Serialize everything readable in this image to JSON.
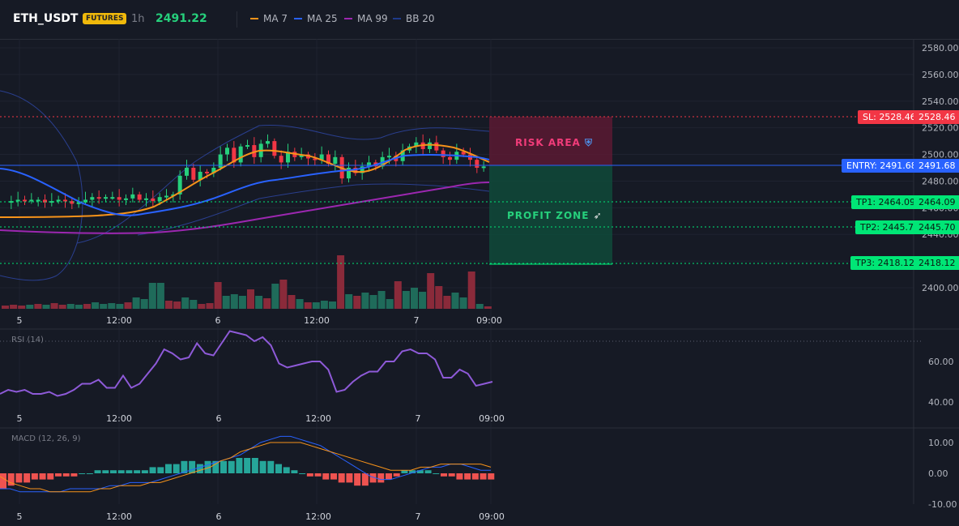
{
  "header": {
    "symbol": "ETH_USDT",
    "badge": "FUTURES",
    "timeframe": "1h",
    "last_price": "2491.22",
    "indicators": [
      {
        "label": "MA 7",
        "color": "#f7931a"
      },
      {
        "label": "MA 25",
        "color": "#2962ff"
      },
      {
        "label": "MA 99",
        "color": "#9c27b0"
      },
      {
        "label": "BB 20",
        "color": "#1e3a8a"
      }
    ]
  },
  "main_axis": {
    "ticks": [
      "2580.00",
      "2560.00",
      "2540.00",
      "2520.00",
      "2500.00",
      "2480.00",
      "2460.00",
      "2440.00",
      "2420.00",
      "2400.00"
    ],
    "values": [
      2580,
      2560,
      2540,
      2520,
      2500,
      2480,
      2460,
      2440,
      2420,
      2400
    ]
  },
  "time_labels": [
    "5",
    "12:00",
    "6",
    "12:00",
    "7",
    "09:00"
  ],
  "levels": {
    "sl": {
      "label": "SL: 2528.46",
      "axis": "2528.46",
      "value": 2528.46,
      "color": "#f23645"
    },
    "entry": {
      "label": "ENTRY: 2491.68",
      "axis": "2491.68",
      "value": 2491.68,
      "color": "#2962ff"
    },
    "tp1": {
      "label": "TP1: 2464.09",
      "axis": "2464.09",
      "value": 2464.09,
      "color": "#00e676"
    },
    "tp2": {
      "label": "TP2: 2445.7",
      "axis": "2445.70",
      "value": 2445.7,
      "color": "#00e676"
    },
    "tp3": {
      "label": "TP3: 2418.12",
      "axis": "2418.12",
      "value": 2418.12,
      "color": "#00e676"
    }
  },
  "zones": {
    "risk": "RISK AREA",
    "risk_icon": "shield-icon",
    "profit": "PROFIT ZONE",
    "profit_icon": "rocket-icon"
  },
  "rsi": {
    "label": "RSI (14)",
    "ticks": [
      "60.00",
      "40.00"
    ],
    "values": [
      44,
      46,
      45,
      46,
      44,
      44,
      45,
      43,
      44,
      46,
      49,
      49,
      51,
      47,
      47,
      53,
      47,
      49,
      54,
      59,
      66,
      64,
      61,
      62,
      69,
      64,
      63,
      69,
      75,
      74,
      73,
      70,
      72,
      68,
      59,
      57,
      58,
      59,
      60,
      60,
      56,
      45,
      46,
      50,
      53,
      55,
      55,
      60,
      60,
      65,
      66,
      64,
      64,
      61,
      52,
      52,
      56,
      54,
      48,
      49,
      50
    ]
  },
  "macd": {
    "label": "MACD (12, 26, 9)",
    "ticks": [
      "10.00",
      "0.00",
      "-10.00"
    ],
    "hist": [
      -5,
      -4,
      -3,
      -3,
      -2,
      -2,
      -2,
      -1,
      -1,
      -1,
      0,
      0,
      1,
      1,
      1,
      1,
      1,
      1,
      1,
      2,
      2,
      3,
      3,
      4,
      4,
      3,
      4,
      4,
      4,
      4,
      5,
      5,
      5,
      4,
      4,
      3,
      2,
      1,
      0,
      -1,
      -1,
      -2,
      -2,
      -3,
      -3,
      -4,
      -4,
      -3,
      -3,
      -2,
      -1,
      1,
      1,
      1,
      1,
      0,
      -1,
      -1,
      -2,
      -2,
      -2,
      -2,
      -2
    ],
    "macd_line": [
      -5,
      -5,
      -6,
      -6,
      -6,
      -6,
      -6,
      -5,
      -5,
      -5,
      -5,
      -4,
      -4,
      -3,
      -3,
      -3,
      -2,
      -1,
      0,
      1,
      2,
      3,
      4,
      5,
      6,
      8,
      10,
      11,
      12,
      12,
      11,
      10,
      9,
      7,
      5,
      3,
      1,
      -1,
      -2,
      -2,
      -1,
      0,
      1,
      2,
      2,
      3,
      3,
      2,
      1,
      1
    ],
    "signal_line": [
      -1,
      -3,
      -4,
      -5,
      -5,
      -6,
      -6,
      -6,
      -6,
      -6,
      -5,
      -5,
      -4,
      -4,
      -4,
      -3,
      -3,
      -2,
      -1,
      0,
      1,
      2,
      4,
      5,
      7,
      8,
      9,
      10,
      10,
      10,
      10,
      9,
      8,
      7,
      6,
      5,
      4,
      3,
      2,
      1,
      1,
      1,
      2,
      2,
      3,
      3,
      3,
      3,
      3,
      2
    ]
  },
  "colors": {
    "up": "#26d07c",
    "down": "#f23645",
    "bg": "#161a25"
  }
}
